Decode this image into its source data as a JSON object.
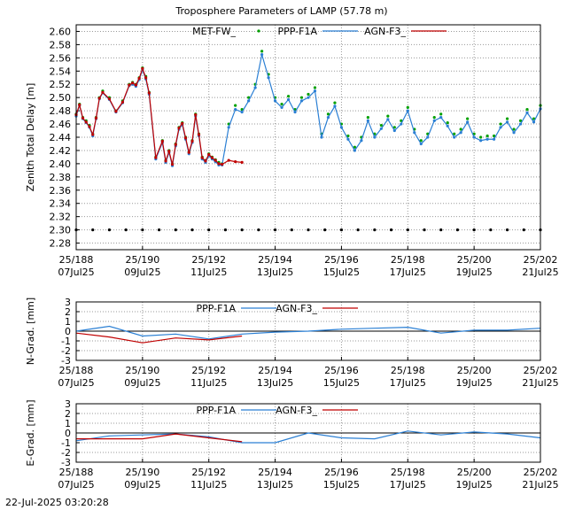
{
  "timestamp": "22-Jul-2025 03:20:28",
  "colors": {
    "met": "#00a000",
    "ppp": "#2a7fd4",
    "agn": "#c00000",
    "grid": "#999999",
    "frame": "#000000"
  },
  "x_ticks": [
    {
      "doy": "25/188",
      "date": "07Jul25"
    },
    {
      "doy": "25/190",
      "date": "09Jul25"
    },
    {
      "doy": "25/192",
      "date": "11Jul25"
    },
    {
      "doy": "25/194",
      "date": "13Jul25"
    },
    {
      "doy": "25/196",
      "date": "15Jul25"
    },
    {
      "doy": "25/198",
      "date": "17Jul25"
    },
    {
      "doy": "25/200",
      "date": "19Jul25"
    },
    {
      "doy": "25/202",
      "date": "21Jul25"
    }
  ],
  "chart_data": [
    {
      "id": "ztd",
      "type": "line",
      "title": "Troposphere Parameters of LAMP (57.78 m)",
      "xlabel": "",
      "ylabel": "Zenith Total Delay [m]",
      "xlim": [
        188,
        202
      ],
      "ylim": [
        2.27,
        2.61
      ],
      "y_ticks": [
        "2.28",
        "2.30",
        "2.32",
        "2.34",
        "2.36",
        "2.38",
        "2.40",
        "2.42",
        "2.44",
        "2.46",
        "2.48",
        "2.50",
        "2.52",
        "2.54",
        "2.56",
        "2.58",
        "2.60"
      ],
      "legend": [
        {
          "name": "MET-FW_",
          "style": "points",
          "color": "#00a000"
        },
        {
          "name": "PPP-F1A",
          "style": "linespoints",
          "color": "#2a7fd4"
        },
        {
          "name": "AGN-F3_",
          "style": "linespoints",
          "color": "#c00000"
        }
      ],
      "series": [
        {
          "name": "MET-FW_",
          "color": "#00a000",
          "x": [
            188.0,
            188.1,
            188.2,
            188.3,
            188.4,
            188.5,
            188.6,
            188.7,
            188.8,
            189.0,
            189.2,
            189.4,
            189.6,
            189.7,
            189.8,
            189.9,
            190.0,
            190.1,
            190.2,
            190.4,
            190.6,
            190.7,
            190.8,
            190.9,
            191.0,
            191.1,
            191.2,
            191.3,
            191.4,
            191.5,
            191.6,
            191.7,
            191.8,
            191.9,
            192.0,
            192.1,
            192.2,
            192.3,
            192.4,
            192.6,
            192.8,
            193.0,
            193.2,
            193.4,
            193.6,
            193.8,
            194.0,
            194.2,
            194.4,
            194.6,
            194.8,
            195.0,
            195.2,
            195.4,
            195.6,
            195.8,
            196.0,
            196.2,
            196.4,
            196.6,
            196.8,
            197.0,
            197.2,
            197.4,
            197.6,
            197.8,
            198.0,
            198.2,
            198.4,
            198.6,
            198.8,
            199.0,
            199.2,
            199.4,
            199.6,
            199.8,
            200.0,
            200.2,
            200.4,
            200.6,
            200.8,
            201.0,
            201.2,
            201.4,
            201.6,
            201.8,
            202.0
          ],
          "y": [
            2.475,
            2.49,
            2.47,
            2.465,
            2.458,
            2.445,
            2.47,
            2.5,
            2.51,
            2.5,
            2.48,
            2.495,
            2.52,
            2.523,
            2.52,
            2.53,
            2.545,
            2.532,
            2.508,
            2.41,
            2.435,
            2.405,
            2.42,
            2.4,
            2.43,
            2.455,
            2.462,
            2.44,
            2.418,
            2.435,
            2.475,
            2.445,
            2.41,
            2.405,
            2.415,
            2.41,
            2.406,
            2.402,
            2.4,
            2.46,
            2.488,
            2.482,
            2.5,
            2.52,
            2.57,
            2.535,
            2.5,
            2.49,
            2.502,
            2.482,
            2.5,
            2.505,
            2.515,
            2.445,
            2.475,
            2.492,
            2.46,
            2.442,
            2.425,
            2.44,
            2.47,
            2.445,
            2.458,
            2.472,
            2.455,
            2.465,
            2.485,
            2.452,
            2.435,
            2.445,
            2.47,
            2.475,
            2.462,
            2.445,
            2.452,
            2.468,
            2.445,
            2.44,
            2.442,
            2.442,
            2.46,
            2.468,
            2.452,
            2.465,
            2.482,
            2.468,
            2.488
          ]
        },
        {
          "name": "MET-FW_ (flag)",
          "color": "#000000",
          "x": [
            188.0,
            188.5,
            189.0,
            189.5,
            190.0,
            190.5,
            191.0,
            191.5,
            192.0,
            192.5,
            193.0,
            193.5,
            194.0,
            194.5,
            195.0,
            195.5,
            196.0,
            196.5,
            197.0,
            197.5,
            198.0,
            198.5,
            199.0,
            199.5,
            200.0,
            200.5,
            201.0,
            201.5,
            202.0
          ],
          "y": [
            2.3,
            2.3,
            2.3,
            2.3,
            2.3,
            2.3,
            2.3,
            2.3,
            2.3,
            2.3,
            2.3,
            2.3,
            2.3,
            2.3,
            2.3,
            2.3,
            2.3,
            2.3,
            2.3,
            2.3,
            2.3,
            2.3,
            2.3,
            2.3,
            2.3,
            2.3,
            2.3,
            2.3,
            2.3
          ]
        },
        {
          "name": "PPP-F1A",
          "color": "#2a7fd4",
          "x": [
            188.0,
            188.1,
            188.2,
            188.3,
            188.4,
            188.5,
            188.6,
            188.7,
            188.8,
            189.0,
            189.2,
            189.4,
            189.6,
            189.7,
            189.8,
            189.9,
            190.0,
            190.1,
            190.2,
            190.4,
            190.6,
            190.7,
            190.8,
            190.9,
            191.0,
            191.1,
            191.2,
            191.3,
            191.4,
            191.5,
            191.6,
            191.7,
            191.8,
            191.9,
            192.0,
            192.1,
            192.2,
            192.3,
            192.4,
            192.6,
            192.8,
            193.0,
            193.2,
            193.4,
            193.6,
            193.8,
            194.0,
            194.2,
            194.4,
            194.6,
            194.8,
            195.0,
            195.2,
            195.4,
            195.6,
            195.8,
            196.0,
            196.2,
            196.4,
            196.6,
            196.8,
            197.0,
            197.2,
            197.4,
            197.6,
            197.8,
            198.0,
            198.2,
            198.4,
            198.6,
            198.8,
            199.0,
            199.2,
            199.4,
            199.6,
            199.8,
            200.0,
            200.2,
            200.4,
            200.6,
            200.8,
            201.0,
            201.2,
            201.4,
            201.6,
            201.8,
            202.0
          ],
          "y": [
            2.472,
            2.488,
            2.468,
            2.462,
            2.455,
            2.442,
            2.468,
            2.498,
            2.507,
            2.497,
            2.478,
            2.492,
            2.518,
            2.52,
            2.517,
            2.527,
            2.542,
            2.528,
            2.505,
            2.407,
            2.432,
            2.402,
            2.417,
            2.397,
            2.427,
            2.452,
            2.459,
            2.437,
            2.415,
            2.432,
            2.472,
            2.442,
            2.407,
            2.402,
            2.412,
            2.407,
            2.403,
            2.398,
            2.398,
            2.455,
            2.482,
            2.478,
            2.495,
            2.515,
            2.565,
            2.53,
            2.495,
            2.485,
            2.497,
            2.478,
            2.495,
            2.5,
            2.51,
            2.44,
            2.47,
            2.487,
            2.455,
            2.437,
            2.42,
            2.435,
            2.465,
            2.44,
            2.453,
            2.467,
            2.45,
            2.46,
            2.48,
            2.447,
            2.43,
            2.44,
            2.465,
            2.47,
            2.457,
            2.44,
            2.447,
            2.463,
            2.44,
            2.435,
            2.437,
            2.437,
            2.455,
            2.463,
            2.447,
            2.46,
            2.477,
            2.463,
            2.483
          ]
        },
        {
          "name": "AGN-F3_",
          "color": "#c00000",
          "x": [
            188.0,
            188.1,
            188.2,
            188.3,
            188.4,
            188.5,
            188.6,
            188.7,
            188.8,
            189.0,
            189.2,
            189.4,
            189.6,
            189.7,
            189.8,
            189.9,
            190.0,
            190.1,
            190.2,
            190.4,
            190.6,
            190.7,
            190.8,
            190.9,
            191.0,
            191.1,
            191.2,
            191.3,
            191.4,
            191.5,
            191.6,
            191.7,
            191.8,
            191.9,
            192.0,
            192.1,
            192.2,
            192.3,
            192.4,
            192.6,
            192.8,
            193.0
          ],
          "y": [
            2.474,
            2.489,
            2.469,
            2.463,
            2.456,
            2.444,
            2.469,
            2.499,
            2.508,
            2.498,
            2.479,
            2.493,
            2.519,
            2.522,
            2.519,
            2.529,
            2.544,
            2.53,
            2.507,
            2.409,
            2.434,
            2.404,
            2.419,
            2.399,
            2.429,
            2.454,
            2.461,
            2.439,
            2.417,
            2.434,
            2.474,
            2.444,
            2.409,
            2.404,
            2.414,
            2.409,
            2.405,
            2.4,
            2.399,
            2.405,
            2.403,
            2.402
          ]
        }
      ]
    },
    {
      "id": "ngrad",
      "type": "line",
      "title": "",
      "xlabel": "",
      "ylabel": "N-Grad. [mm]",
      "xlim": [
        188,
        202
      ],
      "ylim": [
        -3,
        3
      ],
      "y_ticks": [
        "3",
        "2",
        "1",
        "0",
        "-1",
        "-2",
        "-3"
      ],
      "legend": [
        {
          "name": "PPP-F1A",
          "color": "#2a7fd4"
        },
        {
          "name": "AGN-F3_",
          "color": "#c00000"
        }
      ],
      "series": [
        {
          "name": "PPP-F1A",
          "color": "#2a7fd4",
          "x": [
            188,
            189,
            190,
            191,
            192,
            193,
            194,
            195,
            196,
            197,
            198,
            199,
            200,
            201,
            202
          ],
          "y": [
            0.0,
            0.5,
            -0.5,
            -0.3,
            -0.8,
            -0.3,
            -0.1,
            0.0,
            0.2,
            0.3,
            0.4,
            -0.2,
            0.1,
            0.1,
            0.3
          ]
        },
        {
          "name": "AGN-F3_",
          "color": "#c00000",
          "x": [
            188,
            189,
            190,
            191,
            192,
            193
          ],
          "y": [
            -0.2,
            -0.6,
            -1.2,
            -0.7,
            -0.9,
            -0.5
          ]
        }
      ]
    },
    {
      "id": "egrad",
      "type": "line",
      "title": "",
      "xlabel": "",
      "ylabel": "E-Grad. [mm]",
      "xlim": [
        188,
        202
      ],
      "ylim": [
        -3,
        3
      ],
      "y_ticks": [
        "3",
        "2",
        "1",
        "0",
        "-1",
        "-2",
        "-3"
      ],
      "legend": [
        {
          "name": "PPP-F1A",
          "color": "#2a7fd4"
        },
        {
          "name": "AGN-F3_",
          "color": "#c00000"
        }
      ],
      "series": [
        {
          "name": "PPP-F1A",
          "color": "#2a7fd4",
          "x": [
            188,
            189,
            190,
            191,
            192,
            193,
            194,
            195,
            196,
            197,
            198,
            199,
            200,
            201,
            202
          ],
          "y": [
            -0.8,
            -0.3,
            -0.2,
            -0.1,
            -0.4,
            -1.0,
            -1.0,
            0.0,
            -0.5,
            -0.6,
            0.2,
            -0.2,
            0.1,
            -0.1,
            -0.5
          ]
        },
        {
          "name": "AGN-F3_",
          "color": "#c00000",
          "x": [
            188,
            189,
            190,
            191,
            192,
            193
          ],
          "y": [
            -0.6,
            -0.6,
            -0.6,
            -0.1,
            -0.5,
            -0.9
          ]
        }
      ]
    }
  ]
}
